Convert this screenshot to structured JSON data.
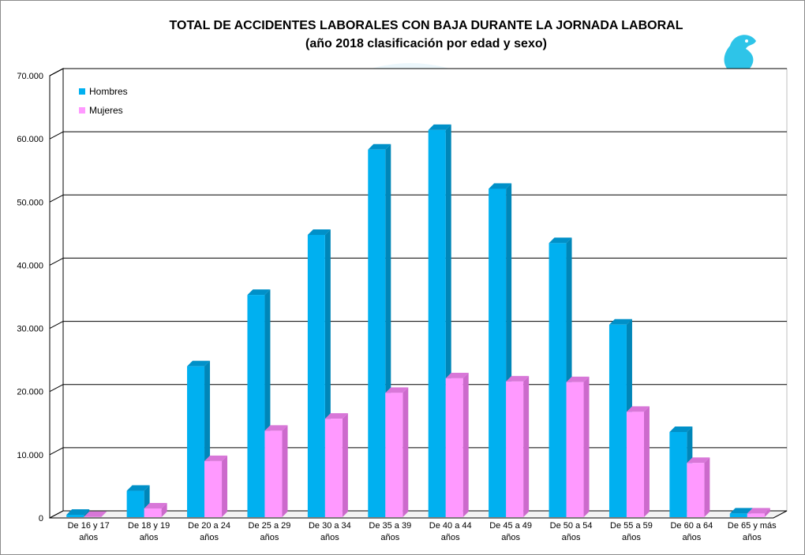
{
  "chart_data": {
    "type": "bar",
    "title": "TOTAL DE ACCIDENTES LABORALES CON BAJA DURANTE LA JORNADA LABORAL",
    "subtitle": "(año 2018 clasificación por edad y sexo)",
    "categories": [
      [
        "De 16 y 17",
        "años"
      ],
      [
        "De 18 y 19",
        "años"
      ],
      [
        "De 20 a 24",
        "años"
      ],
      [
        "De 25 a 29",
        "años"
      ],
      [
        "De 30 a 34",
        "años"
      ],
      [
        "De 35 a 39",
        "años"
      ],
      [
        "De 40 a 44",
        "años"
      ],
      [
        "De 45 a 49",
        "años"
      ],
      [
        "De 50 a 54",
        "años"
      ],
      [
        "De 55 a 59",
        "años"
      ],
      [
        "De 60 a 64",
        "años"
      ],
      [
        "De 65 y más",
        "años"
      ]
    ],
    "series": [
      {
        "name": "Hombres",
        "color": "#00b0f0",
        "values": [
          500,
          4300,
          24000,
          35300,
          44800,
          58300,
          61400,
          52100,
          43500,
          30600,
          13600,
          700
        ]
      },
      {
        "name": "Mujeres",
        "color": "#ff99ff",
        "values": [
          150,
          1500,
          9000,
          13800,
          15700,
          19800,
          22100,
          21600,
          21500,
          16800,
          8700,
          700
        ]
      }
    ],
    "y_ticks": [
      "0",
      "10.000",
      "20.000",
      "30.000",
      "40.000",
      "50.000",
      "60.000",
      "70.000"
    ],
    "ylim": [
      0,
      70000
    ],
    "grid": true,
    "legend_position": "top-left",
    "style": "3d-columns",
    "watermark": "eagle-emblem"
  }
}
